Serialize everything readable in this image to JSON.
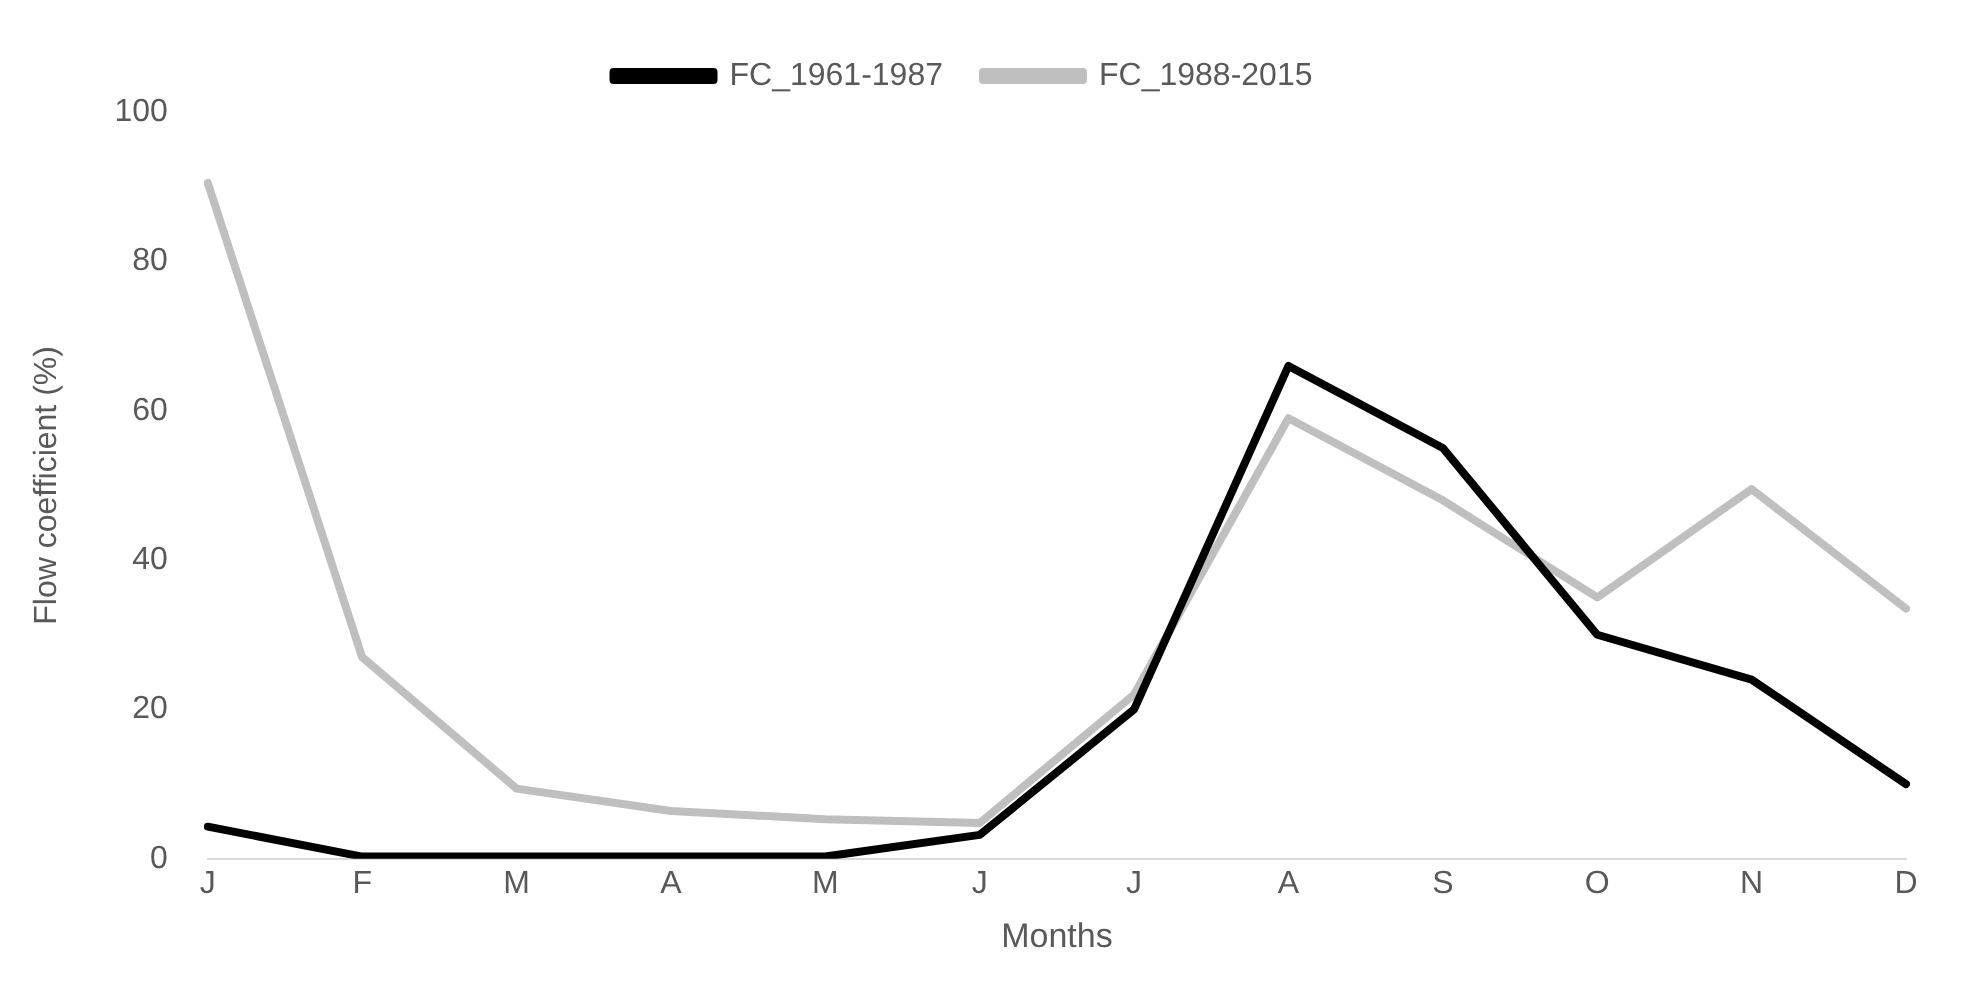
{
  "chart_data": {
    "type": "line",
    "xlabel": "Months",
    "ylabel": "Flow coefficient (%)",
    "categories": [
      "J",
      "F",
      "M",
      "A",
      "M",
      "J",
      "J",
      "A",
      "S",
      "O",
      "N",
      "D"
    ],
    "series": [
      {
        "name": "FC_1961-1987",
        "color": "#000000",
        "values": [
          4.3,
          0.3,
          0.3,
          0.3,
          0.3,
          3.2,
          20,
          66,
          55,
          30,
          24,
          10
        ]
      },
      {
        "name": "FC_1988-2015",
        "color": "#bfbfbf",
        "values": [
          90.5,
          27,
          9.4,
          6.4,
          5.3,
          4.8,
          22,
          59,
          48,
          35,
          49.5,
          33.5
        ]
      }
    ],
    "ylim": [
      0,
      100
    ],
    "yticks": [
      0,
      20,
      40,
      60,
      80,
      100
    ],
    "grid": false,
    "legend": "top",
    "marker": "none",
    "line_style": "solid"
  }
}
